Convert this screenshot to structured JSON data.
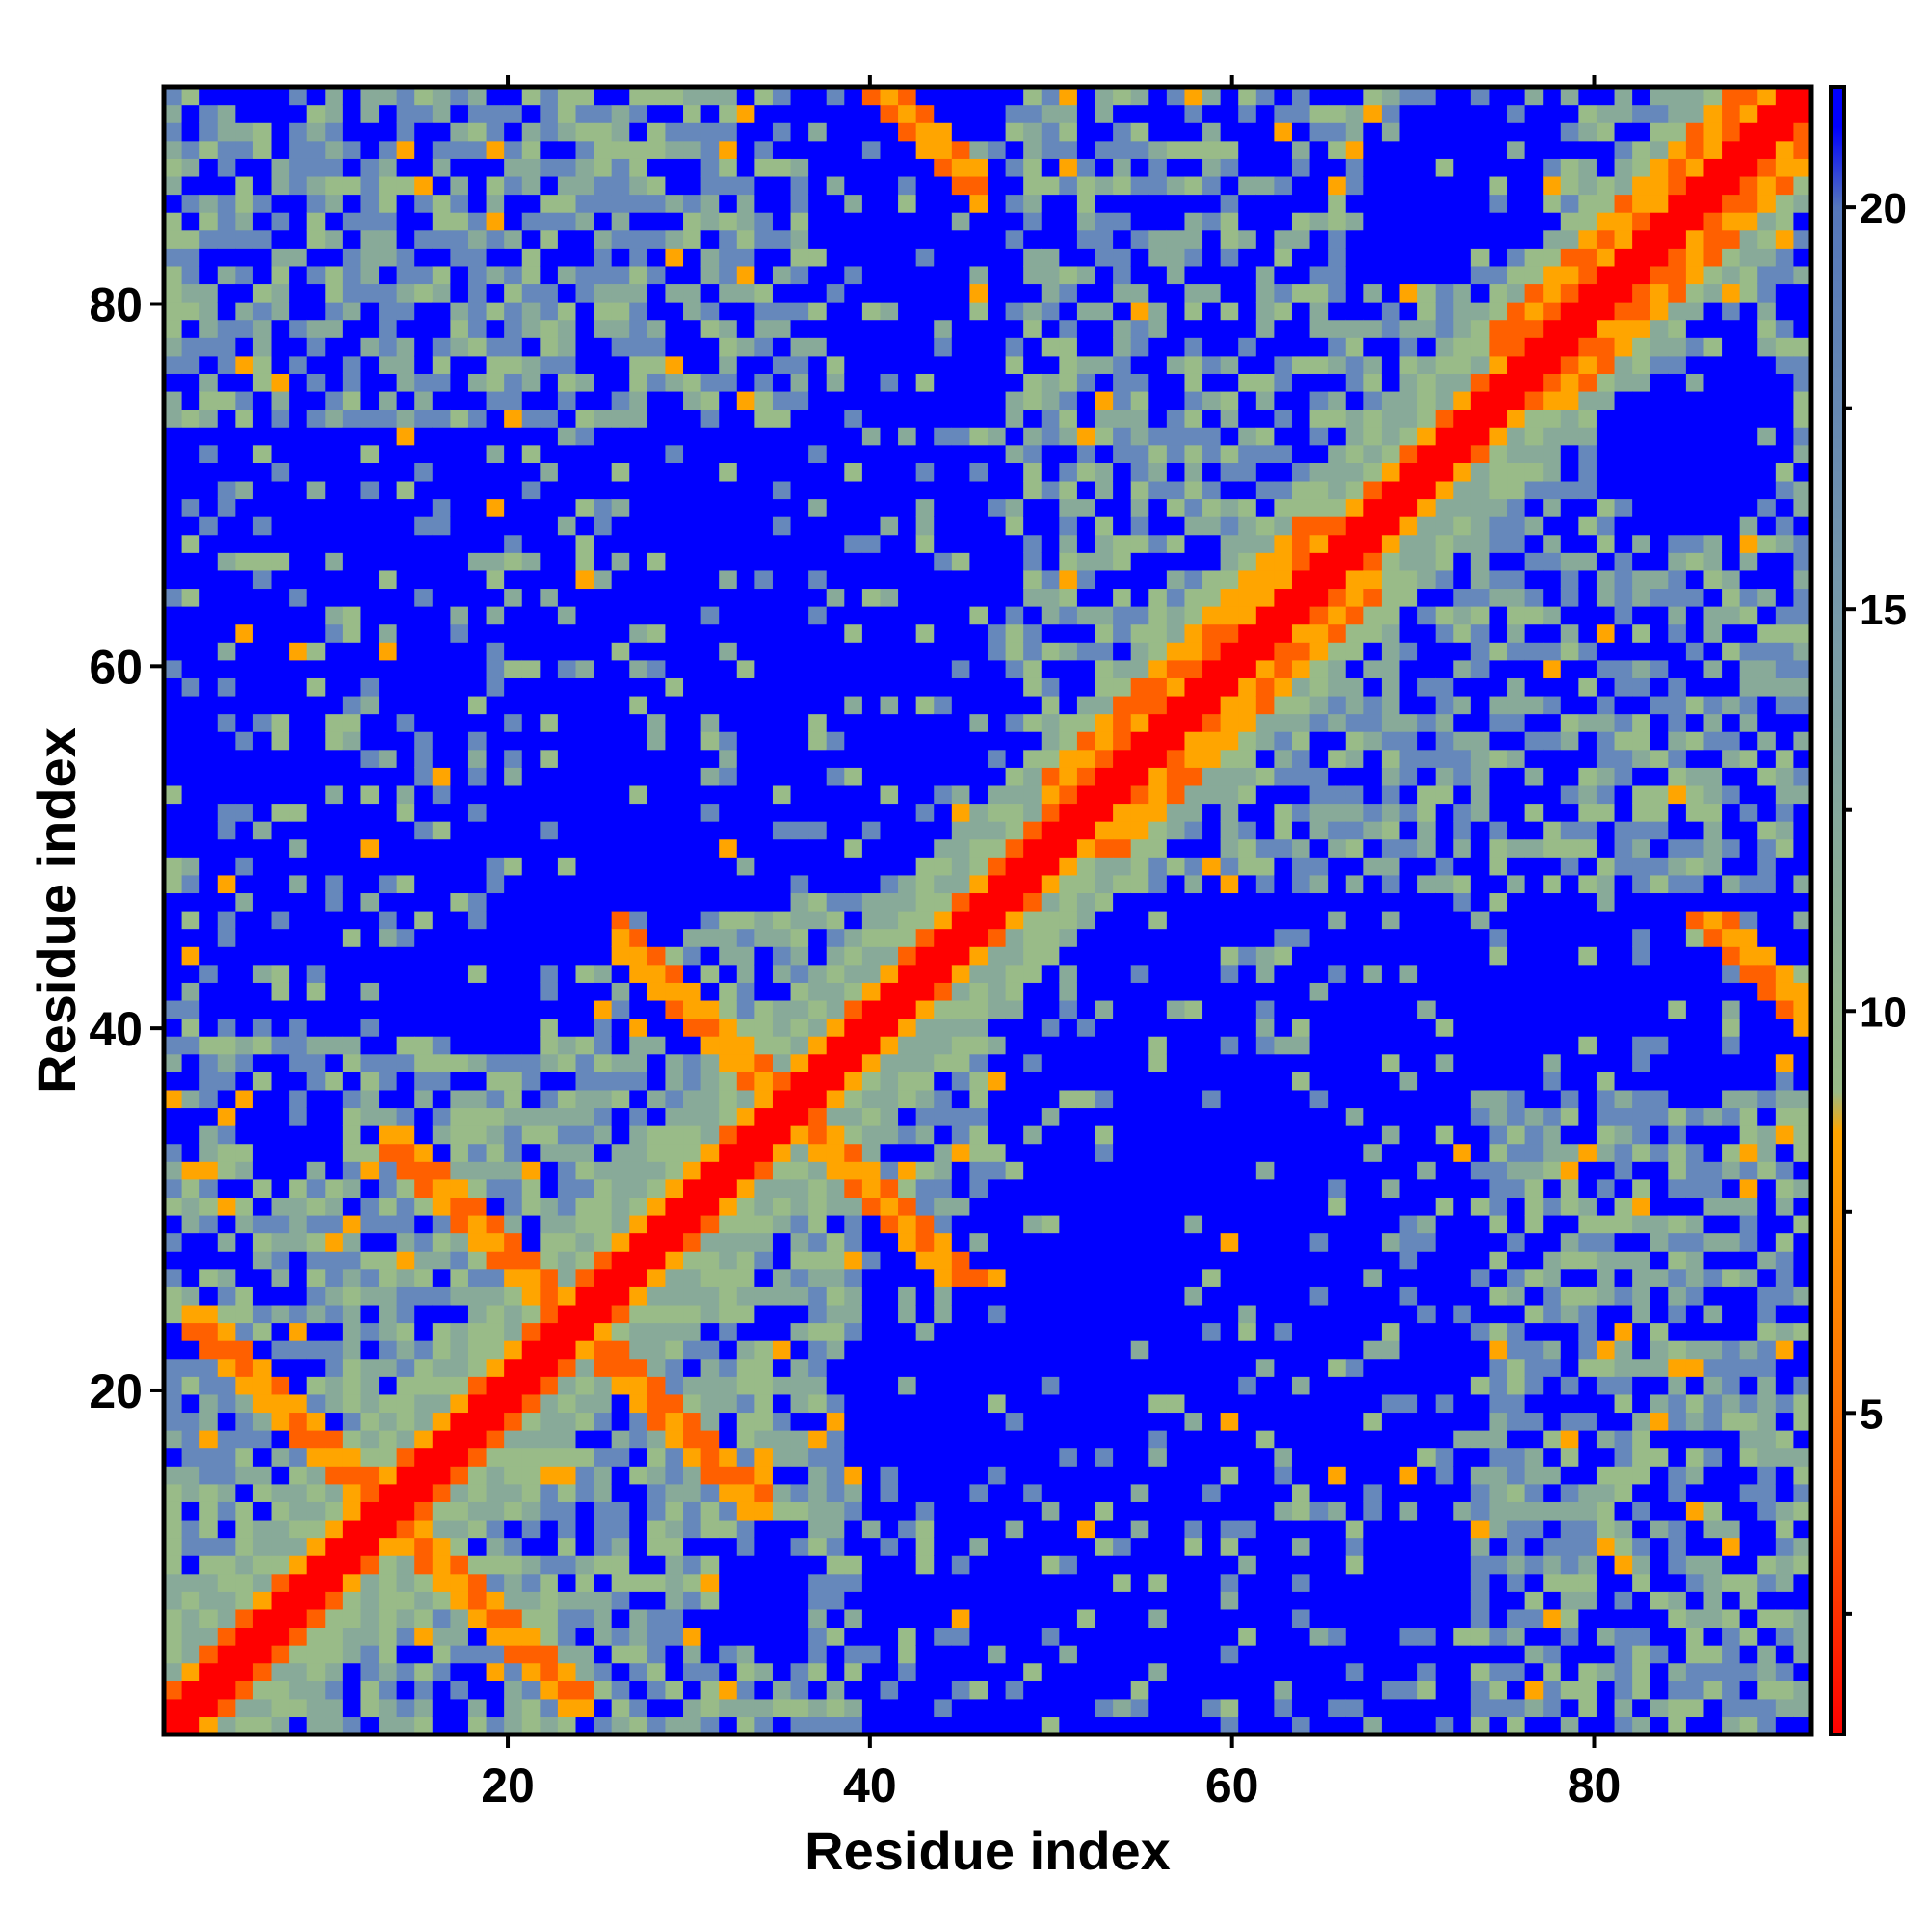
{
  "chart_data": {
    "type": "heatmap",
    "title": "",
    "xlabel": "Residue index",
    "ylabel": "Residue index",
    "n_residues": 92,
    "xlim": [
      1,
      92
    ],
    "ylim": [
      1,
      92
    ],
    "x_ticks": [
      20,
      40,
      60,
      80
    ],
    "y_ticks": [
      20,
      40,
      60,
      80
    ],
    "grid": false,
    "legend": "colorbar-right",
    "colorbar": {
      "range": [
        1,
        21.5
      ],
      "ticks": [
        5,
        10,
        15,
        20
      ],
      "colors": [
        {
          "stop": 1,
          "color": "#ff0000"
        },
        {
          "stop": 4,
          "color": "#ff6000"
        },
        {
          "stop": 8.5,
          "color": "#ffa500"
        },
        {
          "stop": 9,
          "color": "#99bb88"
        },
        {
          "stop": 15,
          "color": "#7799aa"
        },
        {
          "stop": 20,
          "color": "#5577bb"
        },
        {
          "stop": 21,
          "color": "#0000ff"
        }
      ]
    },
    "colors": {
      "red": "#ff0000",
      "dark_orange": "#ff6000",
      "orange": "#ffa500",
      "sage": "#99bb88",
      "gray_green": "#88aa99",
      "steel_blue": "#6688bb",
      "blue": "#0000ff"
    },
    "description_of_structure": {
      "diagonal_width": 1,
      "secondary_structure_bands": [
        {
          "i": [
            13,
            24
          ],
          "j": [
            24,
            34
          ],
          "kind": "antiparallel"
        },
        {
          "i": [
            2,
            13
          ],
          "j": [
            13,
            24
          ],
          "kind": "antiparallel"
        },
        {
          "i": [
            35,
            47
          ],
          "j": [
            26,
            36
          ],
          "kind": "antiparallel"
        },
        {
          "i": [
            40,
            46
          ],
          "j": [
            86,
            93
          ],
          "kind": "antiparallel"
        },
        {
          "i": [
            75,
            92
          ],
          "j": [
            75,
            92
          ],
          "kind": "helix"
        },
        {
          "i": [
            50,
            68
          ],
          "j": [
            50,
            68
          ],
          "kind": "helix"
        }
      ]
    }
  }
}
